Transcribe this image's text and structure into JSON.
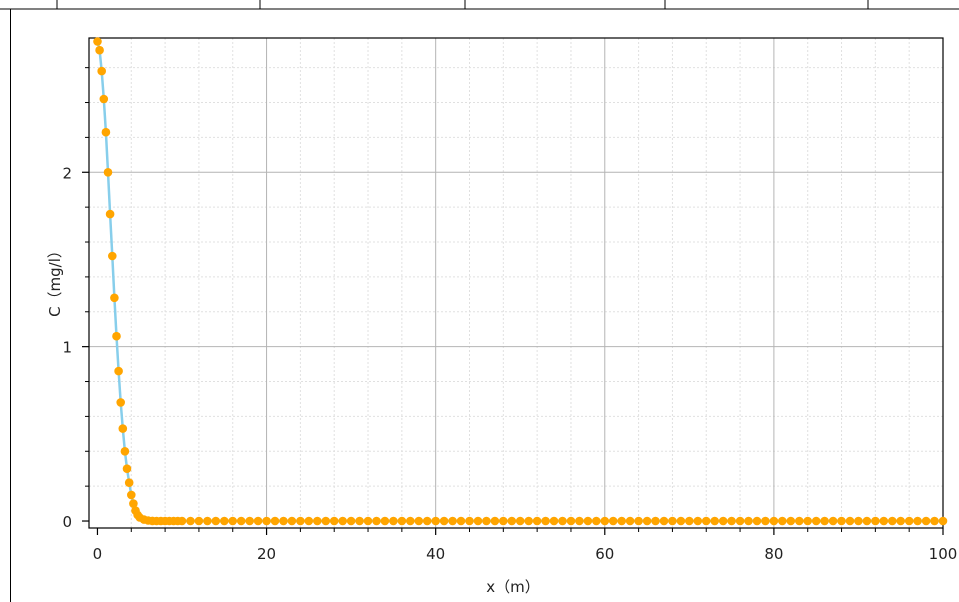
{
  "chart_data": {
    "type": "line",
    "xlabel": "x（m）",
    "ylabel": "C（mg/l）",
    "xlim": [
      -1,
      100
    ],
    "ylim": [
      -0.04,
      2.77
    ],
    "xticks": [
      0,
      20,
      40,
      60,
      80,
      100
    ],
    "yticks": [
      0,
      1,
      2
    ],
    "grid": true,
    "colors": {
      "line": "#87CEEB",
      "marker": "#FFA500",
      "grid_major": "#b4b4b4",
      "grid_minor": "#e0e0e0"
    },
    "series": [
      {
        "x": [
          0,
          0.25,
          0.5,
          0.75,
          1,
          1.25,
          1.5,
          1.75,
          2,
          2.25,
          2.5,
          2.75,
          3,
          3.25,
          3.5,
          3.75,
          4,
          4.25,
          4.5,
          4.75,
          5,
          5.5,
          6,
          6.5,
          7,
          7.5,
          8,
          8.5,
          9,
          9.5,
          10,
          11,
          12,
          13,
          14,
          15,
          16,
          17,
          18,
          19,
          20,
          21,
          22,
          23,
          24,
          25,
          26,
          27,
          28,
          29,
          30,
          31,
          32,
          33,
          34,
          35,
          36,
          37,
          38,
          39,
          40,
          41,
          42,
          43,
          44,
          45,
          46,
          47,
          48,
          49,
          50,
          51,
          52,
          53,
          54,
          55,
          56,
          57,
          58,
          59,
          60,
          61,
          62,
          63,
          64,
          65,
          66,
          67,
          68,
          69,
          70,
          71,
          72,
          73,
          74,
          75,
          76,
          77,
          78,
          79,
          80,
          81,
          82,
          83,
          84,
          85,
          86,
          87,
          88,
          89,
          90,
          91,
          92,
          93,
          94,
          95,
          96,
          97,
          98,
          99,
          100
        ],
        "y": [
          2.75,
          2.7,
          2.58,
          2.42,
          2.23,
          2.0,
          1.76,
          1.52,
          1.28,
          1.06,
          0.86,
          0.68,
          0.53,
          0.4,
          0.3,
          0.22,
          0.15,
          0.1,
          0.06,
          0.035,
          0.02,
          0.008,
          0.003,
          0.001,
          0,
          0,
          0,
          0,
          0,
          0,
          0,
          0,
          0,
          0,
          0,
          0,
          0,
          0,
          0,
          0,
          0,
          0,
          0,
          0,
          0,
          0,
          0,
          0,
          0,
          0,
          0,
          0,
          0,
          0,
          0,
          0,
          0,
          0,
          0,
          0,
          0,
          0,
          0,
          0,
          0,
          0,
          0,
          0,
          0,
          0,
          0,
          0,
          0,
          0,
          0,
          0,
          0,
          0,
          0,
          0,
          0,
          0,
          0,
          0,
          0,
          0,
          0,
          0,
          0,
          0,
          0,
          0,
          0,
          0,
          0,
          0,
          0,
          0,
          0,
          0,
          0,
          0,
          0,
          0,
          0,
          0,
          0,
          0,
          0,
          0,
          0,
          0,
          0,
          0,
          0,
          0,
          0,
          0,
          0,
          0,
          0
        ]
      }
    ]
  }
}
